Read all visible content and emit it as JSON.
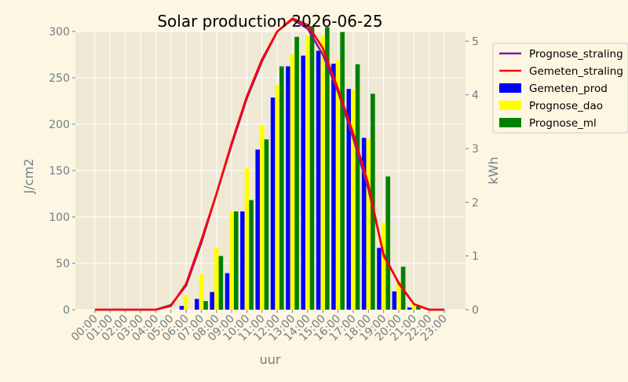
{
  "chart_data": {
    "type": "bar",
    "title": "Solar production 2026-06-25",
    "xlabel": "uur",
    "ylabel_left": "J/cm2",
    "ylabel_right": "kWh",
    "ylim_left": [
      0,
      300
    ],
    "ylim_right": [
      0,
      5.18
    ],
    "yticks_left": [
      0,
      50,
      100,
      150,
      200,
      250,
      300
    ],
    "yticks_right": [
      0,
      1,
      2,
      3,
      4,
      5
    ],
    "grid": true,
    "legend_placement": "outside-right",
    "categories": [
      "00:00",
      "01:00",
      "02:00",
      "03:00",
      "04:00",
      "05:00",
      "06:00",
      "07:00",
      "08:00",
      "09:00",
      "10:00",
      "11:00",
      "12:00",
      "13:00",
      "14:00",
      "15:00",
      "16:00",
      "17:00",
      "18:00",
      "19:00",
      "20:00",
      "21:00",
      "22:00",
      "23:00"
    ],
    "line_series": [
      {
        "name": "Prognose_straling",
        "color": "#7a1fa2",
        "axis": "left",
        "values": [
          0,
          0,
          0,
          0,
          0,
          5,
          26,
          72,
          125,
          178,
          228,
          268,
          300,
          313,
          303,
          275,
          235,
          185,
          130,
          60,
          28,
          6,
          0,
          0
        ]
      },
      {
        "name": "Gemeten_straling",
        "color": "#ff0000",
        "axis": "left",
        "values": [
          0,
          0,
          0,
          0,
          0,
          4,
          28,
          75,
          125,
          180,
          230,
          270,
          300,
          314,
          307,
          282,
          238,
          190,
          135,
          58,
          29,
          6,
          0,
          0
        ]
      }
    ],
    "bar_series": [
      {
        "name": "Gemeten_prod",
        "color": "#0000ff",
        "axis": "right",
        "values": [
          0,
          0,
          0,
          0,
          0,
          0,
          0.07,
          0.2,
          0.33,
          0.68,
          1.83,
          2.98,
          3.95,
          4.53,
          4.73,
          4.82,
          4.58,
          4.11,
          3.2,
          1.15,
          0.34,
          0.04,
          0,
          0
        ]
      },
      {
        "name": "Prognose_dao",
        "color": "#ffff00",
        "axis": "right",
        "values": [
          0,
          0,
          0,
          0,
          0,
          0,
          0.27,
          0.66,
          1.16,
          1.83,
          2.64,
          3.44,
          4.18,
          4.76,
          5.1,
          5.1,
          4.65,
          4.1,
          3.18,
          1.62,
          0.52,
          0.13,
          0,
          0
        ]
      },
      {
        "name": "Prognose_ml",
        "color": "#008000",
        "axis": "right",
        "values": [
          0,
          0.02,
          0,
          0,
          0,
          0,
          0,
          0.16,
          1.0,
          1.83,
          2.04,
          3.17,
          4.53,
          5.08,
          5.28,
          5.26,
          5.17,
          4.57,
          4.02,
          2.48,
          0.8,
          0.07,
          0,
          0
        ]
      }
    ],
    "legend": [
      "Prognose_straling",
      "Gemeten_straling",
      "Gemeten_prod",
      "Prognose_dao",
      "Prognose_ml"
    ]
  }
}
